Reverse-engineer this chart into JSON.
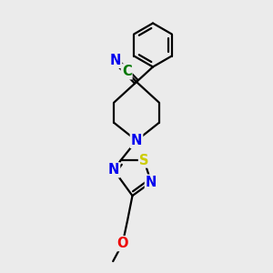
{
  "bg_color": "#ebebeb",
  "bond_color": "#000000",
  "bond_width": 1.6,
  "atom_colors": {
    "N": "#0000ee",
    "S": "#cccc00",
    "O": "#ee0000",
    "C_nitrile": "#007700"
  },
  "font_size_atoms": 10.5,
  "xlim": [
    0,
    10
  ],
  "ylim": [
    0,
    10
  ]
}
